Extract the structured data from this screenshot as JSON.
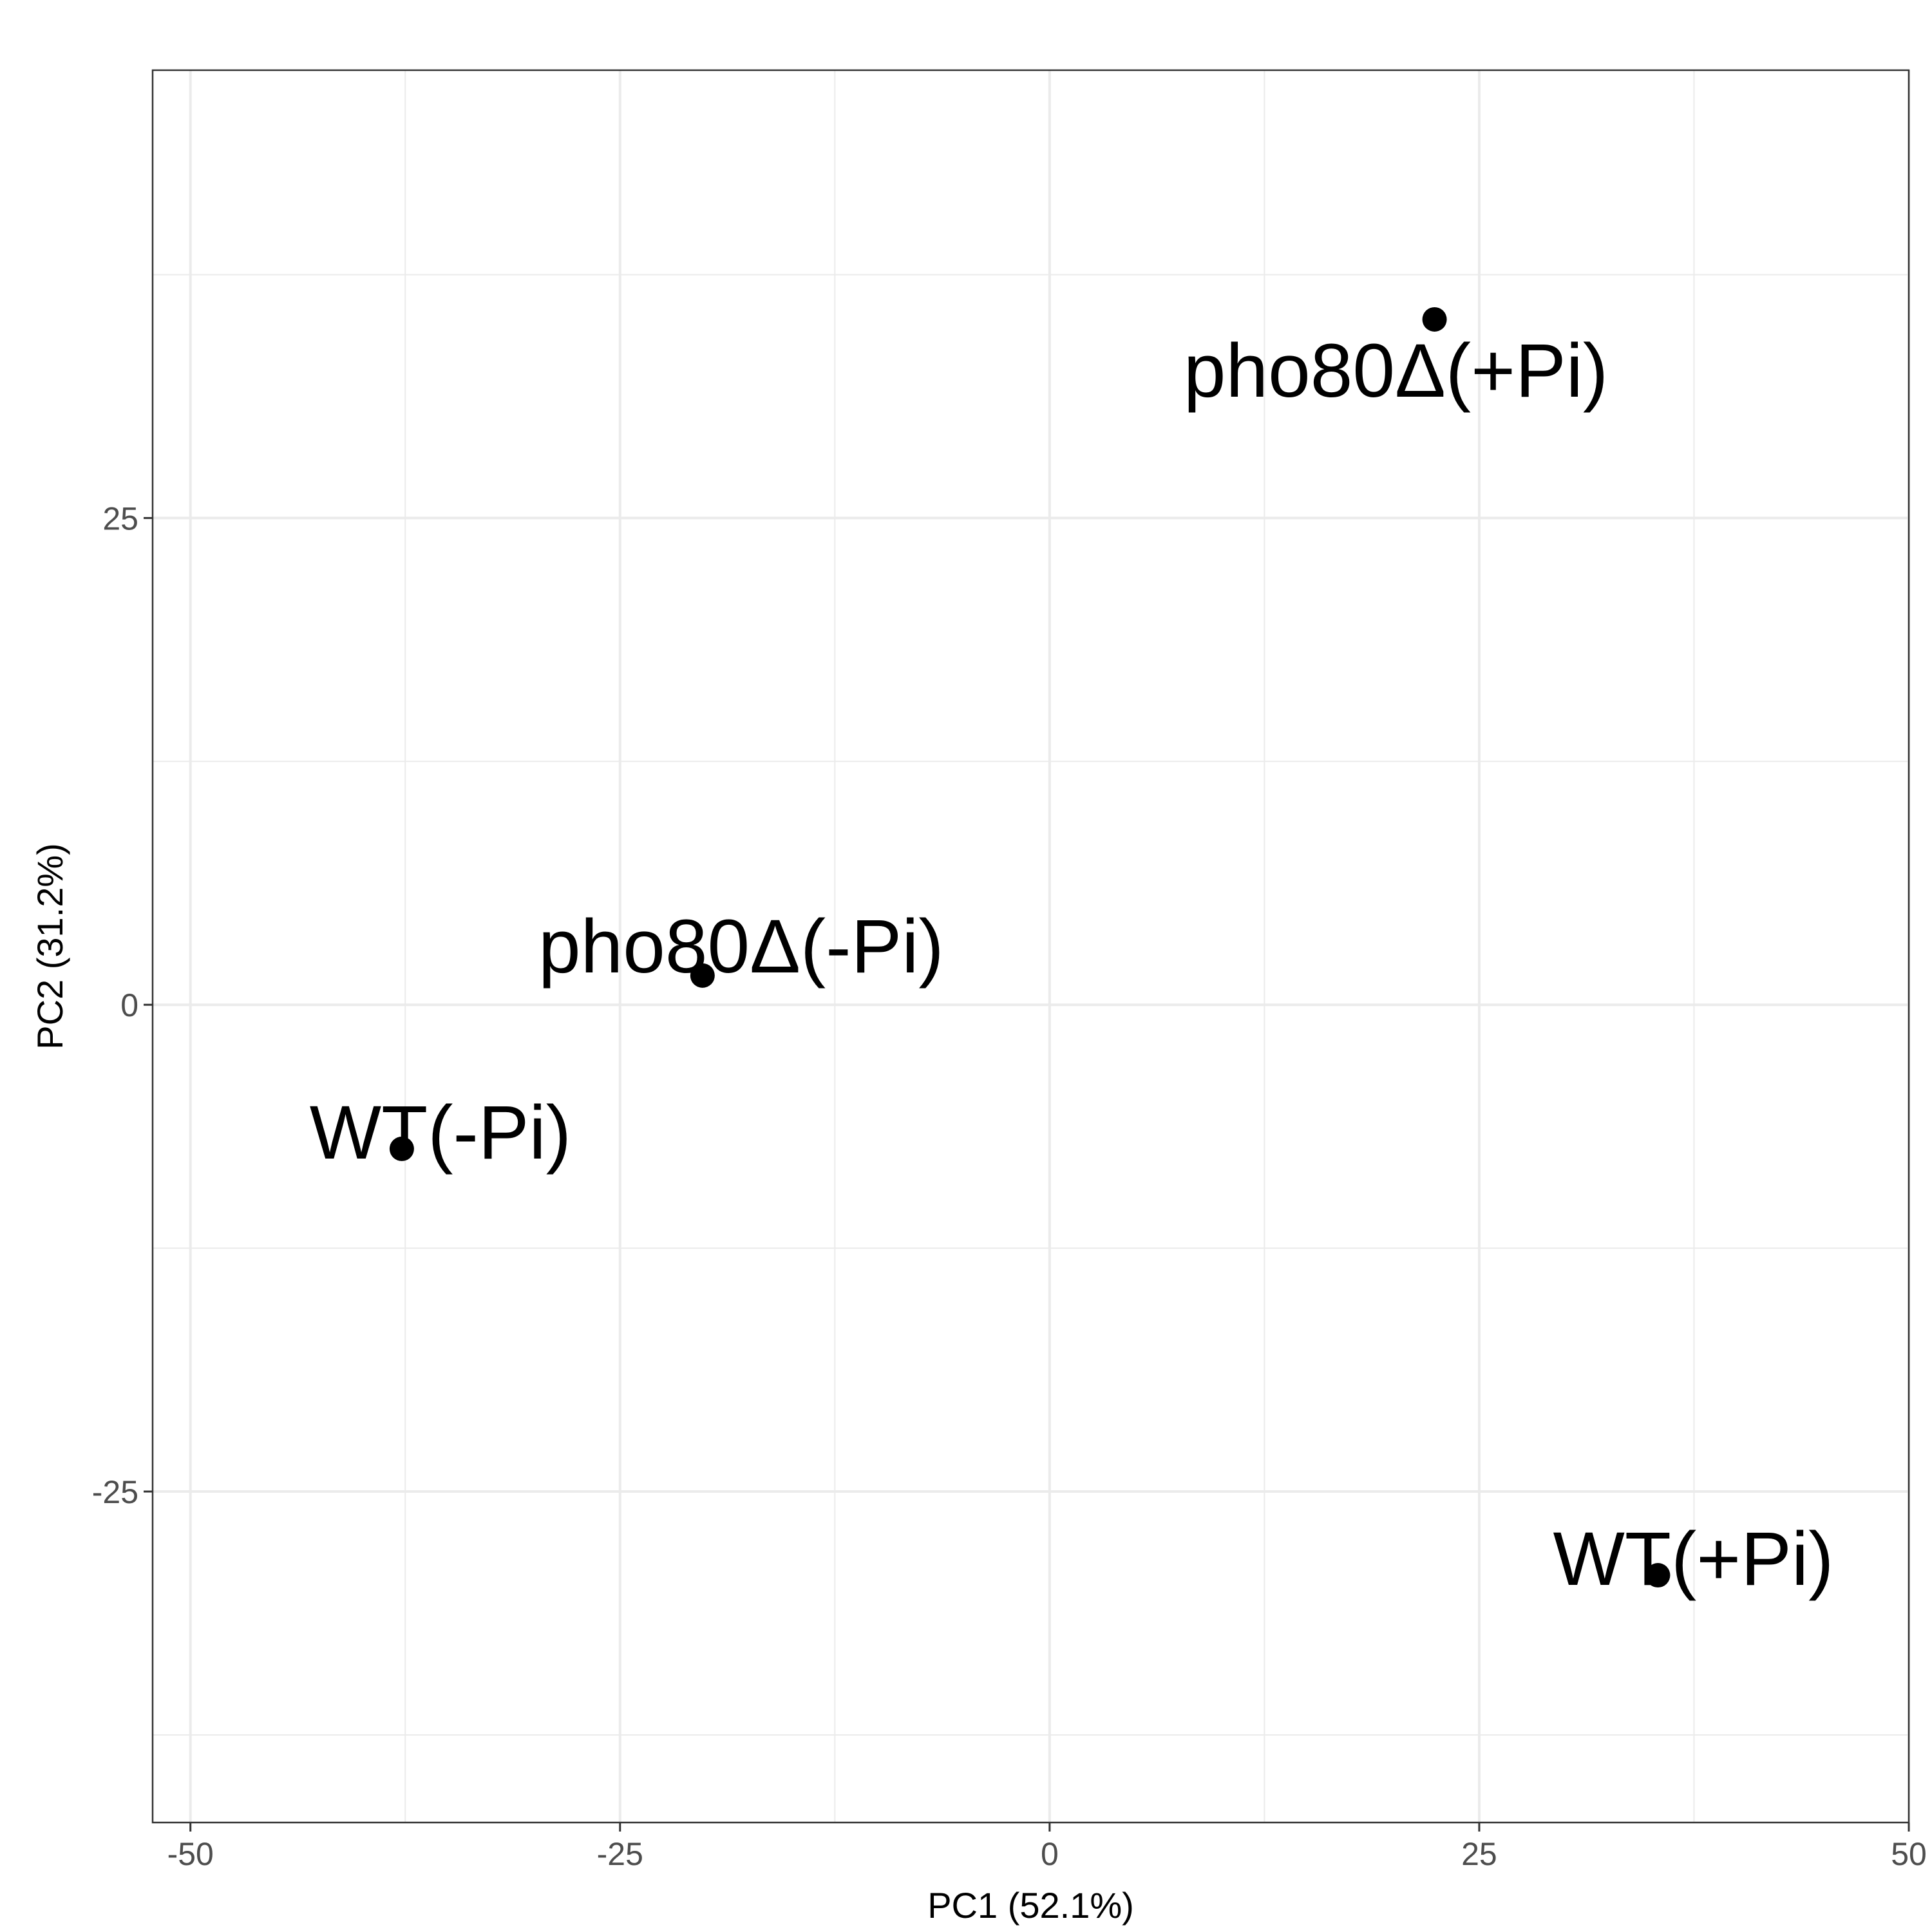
{
  "chart_data": {
    "type": "scatter",
    "title": "",
    "xlabel": "PC1 (52.1%)",
    "ylabel": "PC2 (31.2%)",
    "xlim": [
      -52.2,
      50
    ],
    "ylim": [
      -42,
      48
    ],
    "x_ticks": [
      -50,
      -25,
      0,
      25,
      50
    ],
    "x_tick_labels": [
      "-50",
      "-25",
      "0",
      "25",
      "50"
    ],
    "y_ticks": [
      -25,
      0,
      25
    ],
    "y_tick_labels": [
      "-25",
      "0",
      "25"
    ],
    "x_minor_ticks": [
      -37.5,
      -12.5,
      12.5,
      37.5
    ],
    "y_minor_ticks": [
      -37.5,
      -12.5,
      12.5,
      37.5
    ],
    "grid": true,
    "legend": "none",
    "point_color": "#000000",
    "grid_color": "#ebebeb",
    "points": [
      {
        "label": "pho80Δ(+Pi)",
        "x": 22.4,
        "y": 35.2
      },
      {
        "label": "pho80Δ(-Pi)",
        "x": -20.2,
        "y": 1.5
      },
      {
        "label": "WT(-Pi)",
        "x": -37.7,
        "y": -7.4
      },
      {
        "label": "WT(+Pi)",
        "x": 35.4,
        "y": -29.3
      }
    ]
  }
}
